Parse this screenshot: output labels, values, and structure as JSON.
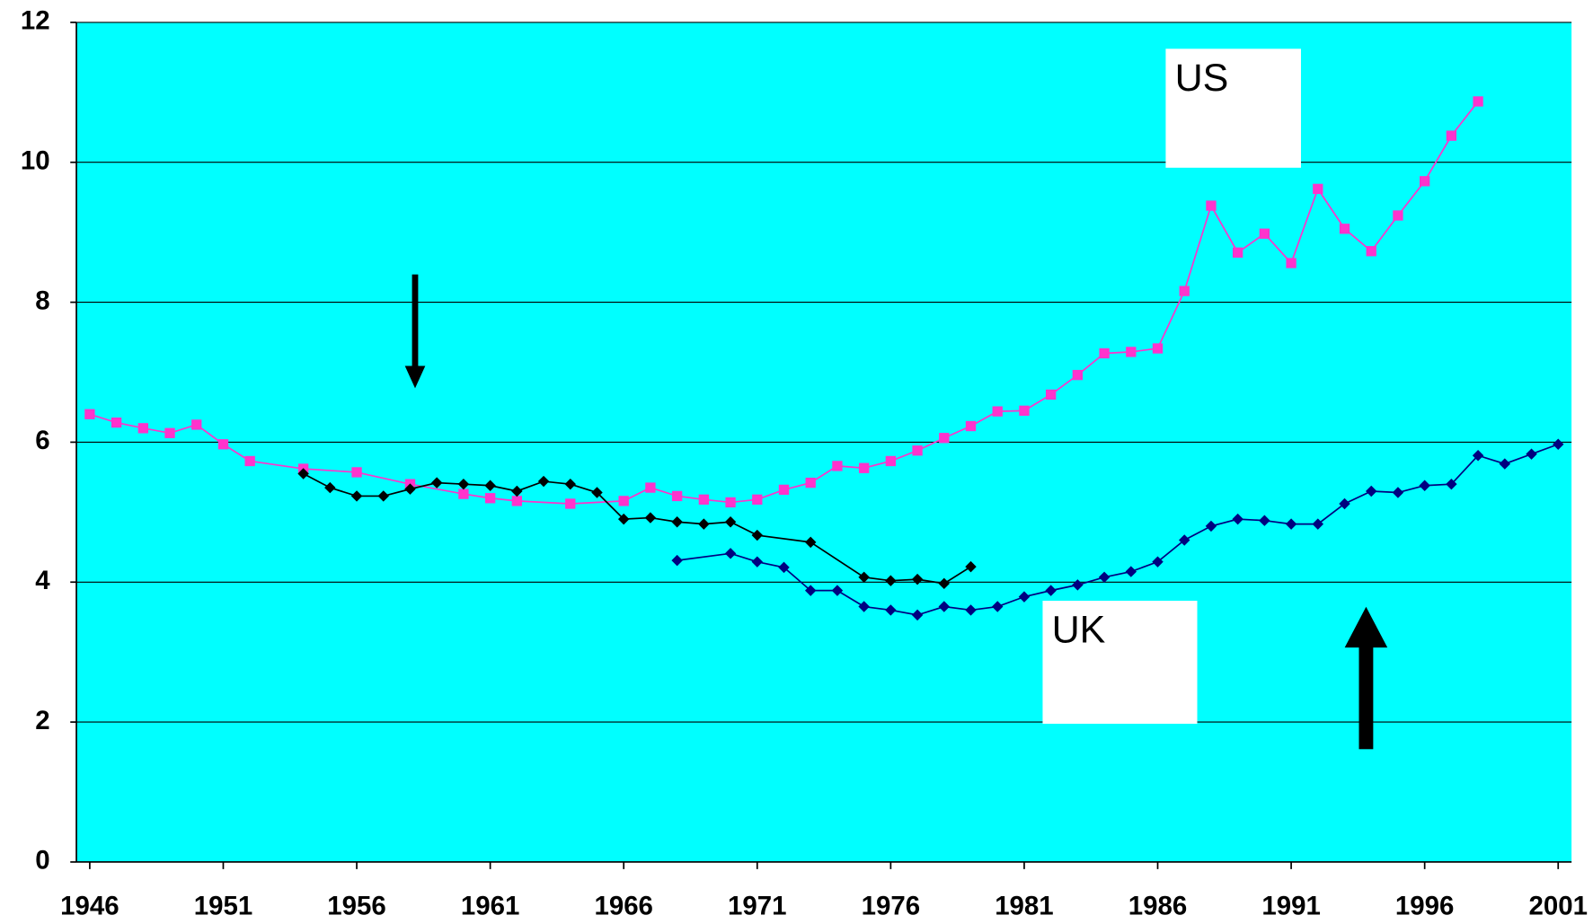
{
  "chart_data": {
    "type": "line",
    "xlim": [
      1945.5,
      2001.5
    ],
    "xticks": [
      1946,
      1951,
      1956,
      1961,
      1966,
      1971,
      1976,
      1981,
      1986,
      1991,
      1996,
      2001
    ],
    "ylim": [
      0,
      12
    ],
    "yticks": [
      0,
      2,
      4,
      6,
      8,
      10,
      12
    ],
    "grid": true,
    "background": "#00ffff",
    "series": [
      {
        "color": "#ff33cc",
        "marker": "square",
        "x": [
          1946,
          1947,
          1948,
          1949,
          1950,
          1951,
          1952,
          1954,
          1956,
          1958,
          1960,
          1961,
          1962,
          1964,
          1966,
          1967,
          1968,
          1969,
          1970,
          1971,
          1972,
          1973,
          1974,
          1975,
          1976,
          1977,
          1978,
          1979,
          1980,
          1981,
          1982,
          1983,
          1984,
          1985,
          1986,
          1987,
          1988,
          1989,
          1990,
          1991,
          1992,
          1993,
          1994,
          1995,
          1996,
          1997,
          1998
        ],
        "values": [
          6.4,
          6.28,
          6.2,
          6.13,
          6.25,
          5.97,
          5.73,
          5.62,
          5.57,
          5.4,
          5.26,
          5.2,
          5.16,
          5.12,
          5.16,
          5.35,
          5.23,
          5.18,
          5.14,
          5.18,
          5.32,
          5.42,
          5.66,
          5.63,
          5.73,
          5.88,
          6.06,
          6.23,
          6.44,
          6.45,
          6.68,
          6.96,
          7.27,
          7.29,
          7.34,
          8.16,
          9.38,
          8.71,
          8.98,
          8.56,
          9.62,
          9.05,
          8.73,
          9.24,
          9.73,
          10.38,
          10.87
        ]
      },
      {
        "color": "#000000",
        "marker": "diamond",
        "x": [
          1954,
          1955,
          1956,
          1957,
          1958,
          1959,
          1960,
          1961,
          1962,
          1963,
          1964,
          1965,
          1966,
          1967,
          1968,
          1969,
          1970,
          1971,
          1973,
          1975,
          1976,
          1977,
          1978,
          1979
        ],
        "values": [
          5.55,
          5.35,
          5.23,
          5.23,
          5.33,
          5.42,
          5.4,
          5.38,
          5.3,
          5.44,
          5.4,
          5.28,
          4.9,
          4.92,
          4.86,
          4.83,
          4.86,
          4.67,
          4.57,
          4.07,
          4.02,
          4.04,
          3.98,
          4.22
        ]
      },
      {
        "color": "#000080",
        "marker": "diamond",
        "x": [
          1968,
          1970,
          1971,
          1972,
          1973,
          1974,
          1975,
          1976,
          1977,
          1978,
          1979,
          1980,
          1981,
          1982,
          1983,
          1984,
          1985,
          1986,
          1987,
          1988,
          1989,
          1990,
          1991,
          1992,
          1993,
          1994,
          1995,
          1996,
          1997,
          1998,
          1999,
          2000,
          2001
        ],
        "values": [
          4.31,
          4.41,
          4.29,
          4.21,
          3.88,
          3.88,
          3.65,
          3.6,
          3.53,
          3.65,
          3.6,
          3.65,
          3.79,
          3.88,
          3.96,
          4.07,
          4.15,
          4.29,
          4.6,
          4.8,
          4.9,
          4.88,
          4.83,
          4.83,
          5.12,
          5.3,
          5.28,
          5.38,
          5.4,
          5.81,
          5.69,
          5.83,
          5.97
        ]
      }
    ],
    "annotations": [
      {
        "text": "US"
      },
      {
        "text": "UK"
      }
    ]
  }
}
